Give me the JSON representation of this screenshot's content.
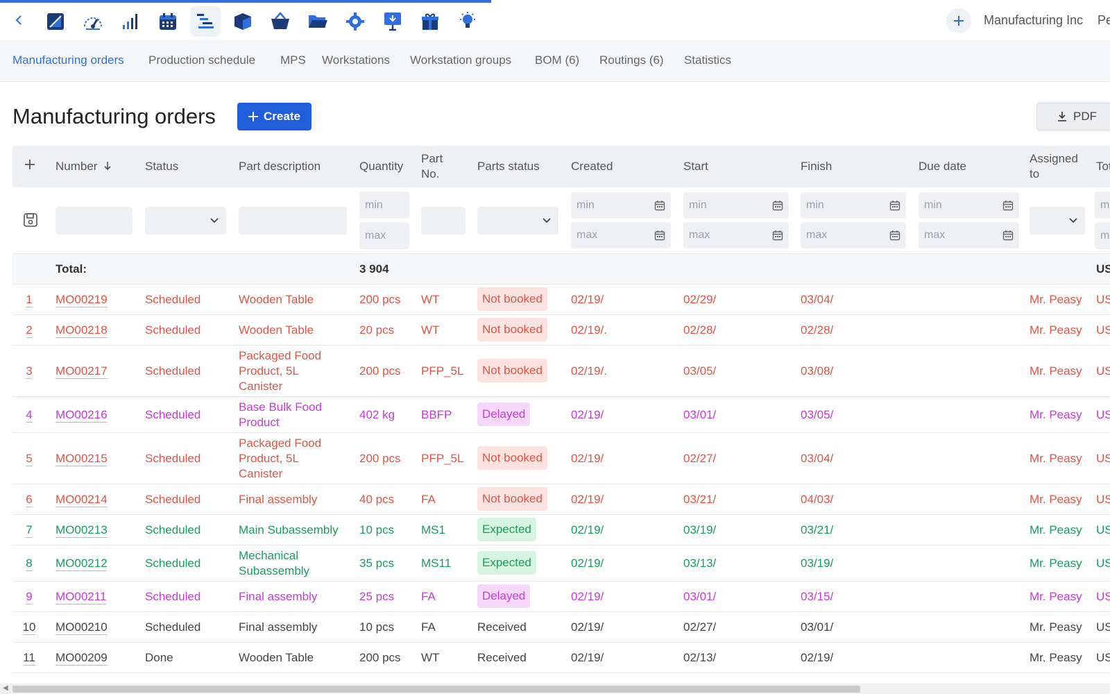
{
  "company": "Manufacturing Inc",
  "company_tail": "Pe",
  "colors": {
    "accent": "#2f6fde",
    "create": "#1f5fdc",
    "not_booked": "#e05545",
    "delayed": "#c43bd6",
    "expected": "#1a9c5c"
  },
  "toolbar_icons": [
    "back-chevron-icon",
    "notes-icon",
    "dashboard-icon",
    "signal-bars-icon",
    "calendar-icon",
    "gantt-icon",
    "cube-icon",
    "basket-icon",
    "folder-icon",
    "gear-icon",
    "presentation-icon",
    "gift-icon",
    "lightbulb-icon"
  ],
  "tabs": [
    {
      "label": "Manufacturing orders",
      "active": true
    },
    {
      "label": "Production schedule"
    },
    {
      "label": "MPS"
    },
    {
      "label": "Workstations"
    },
    {
      "label": "Workstation groups"
    },
    {
      "label": "BOM (6)"
    },
    {
      "label": "Routings (6)"
    },
    {
      "label": "Statistics"
    }
  ],
  "page": {
    "title": "Manufacturing orders",
    "create_label": "Create",
    "pdf_label": "PDF"
  },
  "columns": {
    "number": "Number",
    "status": "Status",
    "part_description": "Part description",
    "quantity": "Quantity",
    "part_no_1": "Part",
    "part_no_2": "No.",
    "parts_status": "Parts status",
    "created": "Created",
    "start": "Start",
    "finish": "Finish",
    "due_date": "Due date",
    "assigned_1": "Assigned",
    "assigned_2": "to",
    "total": "Tot"
  },
  "filters": {
    "min": "min",
    "max": "max",
    "cut_min": "mi",
    "cut_max": "m"
  },
  "total": {
    "label": "Total:",
    "quantity": "3 904",
    "currency": "US"
  },
  "rows": [
    {
      "idx": "1",
      "number": "MO00219",
      "status": "Scheduled",
      "part": "Wooden Table",
      "qty": "200 pcs",
      "partno": "WT",
      "parts_status": "Not booked",
      "created": "02/19/",
      "start": "02/29/",
      "finish": "03/04/",
      "assigned": "Mr. Peasy",
      "total": "US",
      "kind": "not_booked"
    },
    {
      "idx": "2",
      "number": "MO00218",
      "status": "Scheduled",
      "part": "Wooden Table",
      "qty": "20 pcs",
      "partno": "WT",
      "parts_status": "Not booked",
      "created": "02/19/.",
      "start": "02/28/",
      "finish": "02/28/",
      "assigned": "Mr. Peasy",
      "total": "US",
      "kind": "not_booked"
    },
    {
      "idx": "3",
      "number": "MO00217",
      "status": "Scheduled",
      "part": "Packaged Food Product, 5L Canister",
      "qty": "200 pcs",
      "partno": "PFP_5L",
      "parts_status": "Not booked",
      "created": "02/19/.",
      "start": "03/05/",
      "finish": "03/08/",
      "assigned": "Mr. Peasy",
      "total": "US",
      "kind": "not_booked"
    },
    {
      "idx": "4",
      "number": "MO00216",
      "status": "Scheduled",
      "part": "Base Bulk Food Product",
      "qty": "402 kg",
      "partno": "BBFP",
      "parts_status": "Delayed",
      "created": "02/19/",
      "start": "03/01/",
      "finish": "03/05/",
      "assigned": "Mr. Peasy",
      "total": "US",
      "kind": "delayed"
    },
    {
      "idx": "5",
      "number": "MO00215",
      "status": "Scheduled",
      "part": "Packaged Food Product, 5L Canister",
      "qty": "200 pcs",
      "partno": "PFP_5L",
      "parts_status": "Not booked",
      "created": "02/19/",
      "start": "02/27/",
      "finish": "03/04/",
      "assigned": "Mr. Peasy",
      "total": "US",
      "kind": "not_booked"
    },
    {
      "idx": "6",
      "number": "MO00214",
      "status": "Scheduled",
      "part": "Final assembly",
      "qty": "40 pcs",
      "partno": "FA",
      "parts_status": "Not booked",
      "created": "02/19/",
      "start": "03/21/",
      "finish": "04/03/",
      "assigned": "Mr. Peasy",
      "total": "US",
      "kind": "not_booked"
    },
    {
      "idx": "7",
      "number": "MO00213",
      "status": "Scheduled",
      "part": "Main Subassembly",
      "qty": "10 pcs",
      "partno": "MS1",
      "parts_status": "Expected",
      "created": "02/19/",
      "start": "03/19/",
      "finish": "03/21/",
      "assigned": "Mr. Peasy",
      "total": "US",
      "kind": "expected"
    },
    {
      "idx": "8",
      "number": "MO00212",
      "status": "Scheduled",
      "part": "Mechanical Subassembly",
      "qty": "35 pcs",
      "partno": "MS11",
      "parts_status": "Expected",
      "created": "02/19/",
      "start": "03/13/",
      "finish": "03/19/",
      "assigned": "Mr. Peasy",
      "total": "US",
      "kind": "expected"
    },
    {
      "idx": "9",
      "number": "MO00211",
      "status": "Scheduled",
      "part": "Final assembly",
      "qty": "25 pcs",
      "partno": "FA",
      "parts_status": "Delayed",
      "created": "02/19/",
      "start": "03/01/",
      "finish": "03/15/",
      "assigned": "Mr. Peasy",
      "total": "US",
      "kind": "delayed"
    },
    {
      "idx": "10",
      "number": "MO00210",
      "status": "Scheduled",
      "part": "Final assembly",
      "qty": "10 pcs",
      "partno": "FA",
      "parts_status": "Received",
      "created": "02/19/",
      "start": "02/27/",
      "finish": "03/01/",
      "assigned": "Mr. Peasy",
      "total": "US",
      "kind": "received"
    },
    {
      "idx": "11",
      "number": "MO00209",
      "status": "Done",
      "part": "Wooden Table",
      "qty": "200 pcs",
      "partno": "WT",
      "parts_status": "Received",
      "created": "02/19/",
      "start": "02/13/",
      "finish": "02/19/",
      "assigned": "Mr. Peasy",
      "total": "US",
      "kind": "received"
    }
  ]
}
